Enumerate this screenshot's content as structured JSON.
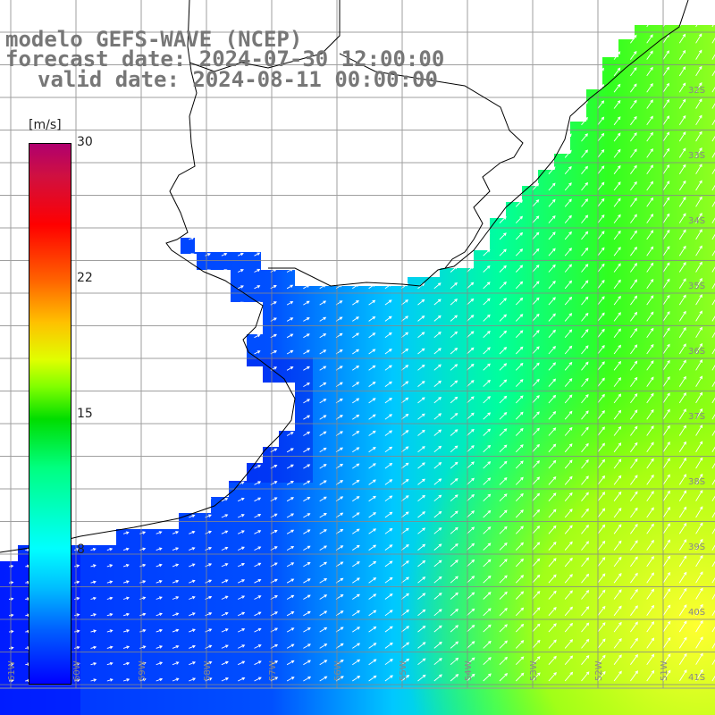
{
  "title": {
    "line1": "modelo GEFS-WAVE (NCEP)",
    "line2": "forecast date: 2024-07-30 12:00:00",
    "line3": "valid date: 2024-08-11 00:00:00"
  },
  "colorbar": {
    "unit": "[m/s]",
    "ticks": [
      "30",
      "22",
      "15",
      "8"
    ]
  },
  "lat_labels": [
    "32S",
    "33S",
    "34S",
    "35S",
    "36S",
    "37S",
    "38S",
    "39S",
    "40S",
    "41S"
  ],
  "lon_labels": [
    "61W",
    "60W",
    "59W",
    "58W",
    "57W",
    "56W",
    "55W",
    "54W",
    "53W",
    "52W",
    "51W"
  ]
}
